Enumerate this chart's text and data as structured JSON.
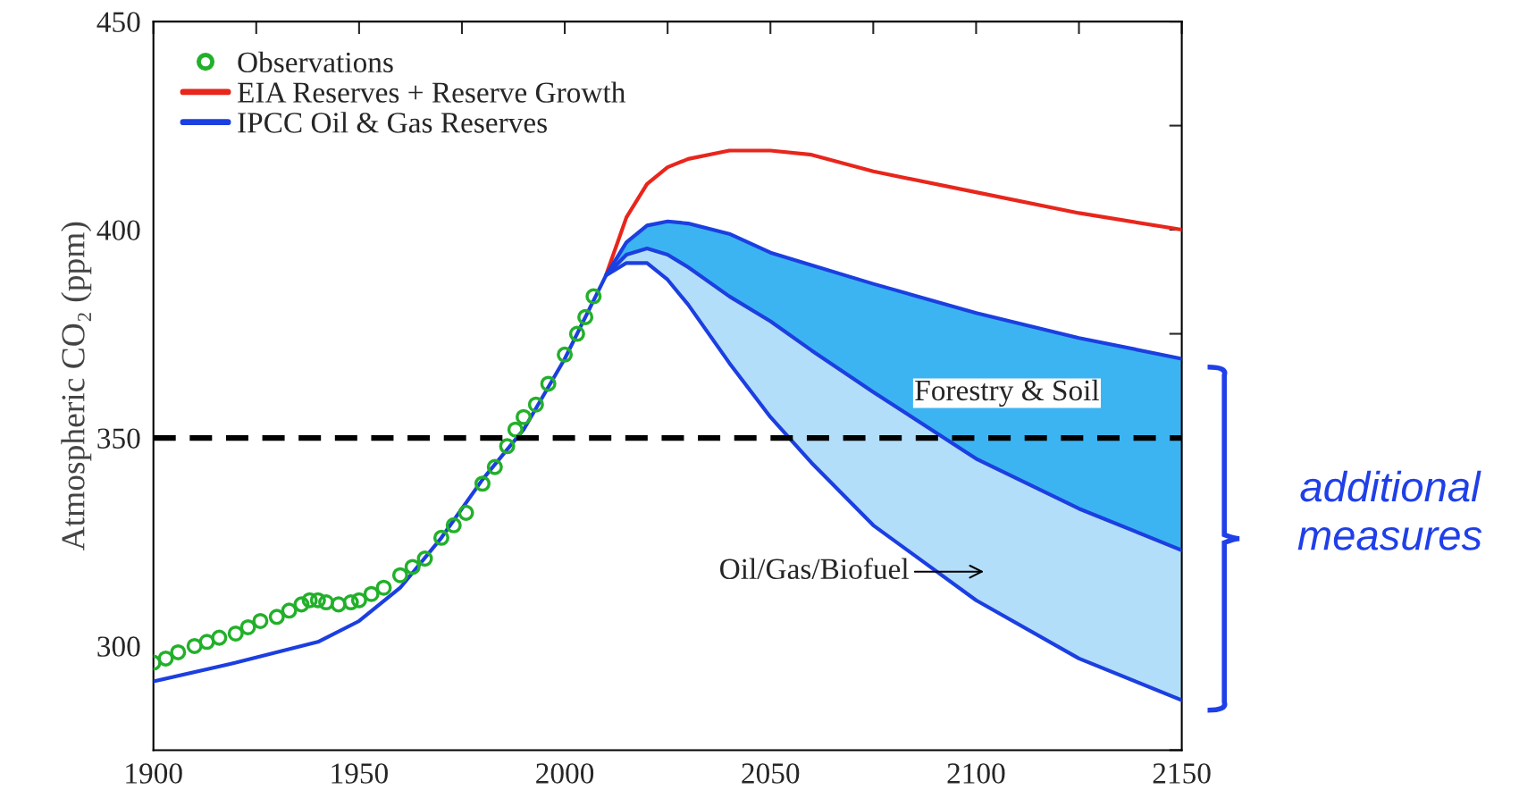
{
  "chart_data": {
    "type": "line",
    "ylabel": "Atmospheric CO₂ (ppm)",
    "xlim": [
      1900,
      2150
    ],
    "ylim": [
      275,
      450
    ],
    "xticks": [
      1900,
      {
        "value": 1925,
        "label": null
      },
      1950,
      {
        "value": 1975,
        "label": null
      },
      2000,
      {
        "value": 2025,
        "label": null
      },
      2050,
      {
        "value": 2075,
        "label": null
      },
      2100,
      {
        "value": 2125,
        "label": null
      },
      2150
    ],
    "yticks": [
      {
        "value": 275,
        "label": null
      },
      300,
      {
        "value": 325,
        "label": null
      },
      350,
      {
        "value": 375,
        "label": null
      },
      400,
      {
        "value": 425,
        "label": null
      },
      450
    ],
    "x": [
      2010,
      2015,
      2020,
      2025,
      2030,
      2040,
      2050,
      2060,
      2075,
      2100,
      2125,
      2150
    ],
    "series": [
      {
        "type": "scatter",
        "name": "Observations",
        "color": "#22b02a",
        "marker": "circle",
        "x": [
          1900,
          1903,
          1906,
          1910,
          1913,
          1916,
          1920,
          1923,
          1926,
          1930,
          1933,
          1936,
          1938,
          1940,
          1942,
          1945,
          1948,
          1950,
          1953,
          1956,
          1960,
          1963,
          1966,
          1970,
          1973,
          1976,
          1980,
          1983,
          1986,
          1988,
          1990,
          1993,
          1996,
          2000,
          2003,
          2005,
          2007
        ],
        "values": [
          296,
          297,
          298.5,
          300,
          301,
          302,
          303,
          304.5,
          306,
          307,
          308.5,
          310,
          311,
          311,
          310.5,
          310,
          310.5,
          311,
          312.5,
          314,
          317,
          319,
          321,
          326,
          329,
          332,
          339,
          343,
          348,
          352,
          355,
          358,
          363,
          370,
          375,
          379,
          384
        ]
      },
      {
        "name": "EIA Reserves + Reserve Growth",
        "color": "#e8261c",
        "values": [
          389,
          403,
          411,
          415,
          417,
          419,
          419,
          418,
          414,
          409,
          404,
          400
        ]
      },
      {
        "name": "IPCC Oil & Gas Reserves",
        "color": "#1b3fe0",
        "x": [
          1900,
          1920,
          1940,
          1950,
          1960,
          1970,
          1980,
          1990,
          2000,
          2010,
          2015,
          2020,
          2025,
          2030,
          2040,
          2050,
          2060,
          2075,
          2100,
          2125,
          2150
        ],
        "values": [
          291.5,
          296,
          301,
          306,
          314,
          326,
          340,
          352,
          369,
          389,
          392,
          392,
          388,
          382,
          368,
          355,
          344,
          329,
          311,
          297,
          287
        ]
      },
      {
        "color": "#1b3fe0",
        "values": [
          389,
          394,
          395.5,
          394,
          391,
          384,
          378,
          371,
          361,
          345,
          333,
          323
        ],
        "lower": [
          389,
          392,
          392,
          388,
          382,
          368,
          355,
          344,
          329,
          311,
          297,
          287
        ],
        "upper": [
          389,
          394,
          395.5,
          394,
          391,
          384,
          378,
          371,
          361,
          345,
          333,
          323
        ]
      },
      {
        "color": "#1b3fe0",
        "values": [
          389,
          397,
          401,
          402,
          401.5,
          399,
          394.5,
          391.5,
          387,
          380,
          374,
          369
        ],
        "lower": [
          389,
          394,
          395.5,
          394,
          391,
          384,
          378,
          371,
          361,
          345,
          333,
          323
        ],
        "upper": [
          389,
          397,
          401,
          402,
          401.5,
          399,
          394.5,
          391.5,
          387,
          380,
          374,
          369
        ]
      }
    ],
    "ref_lines": [
      {
        "axis": "y",
        "value": 350,
        "color": "#000000",
        "line_style": "dashed"
      }
    ],
    "annotations": [
      "Forestry & Soil",
      "Oil/Gas/Biofuel",
      "additional measures"
    ],
    "legend": "top left",
    "grid": false
  }
}
